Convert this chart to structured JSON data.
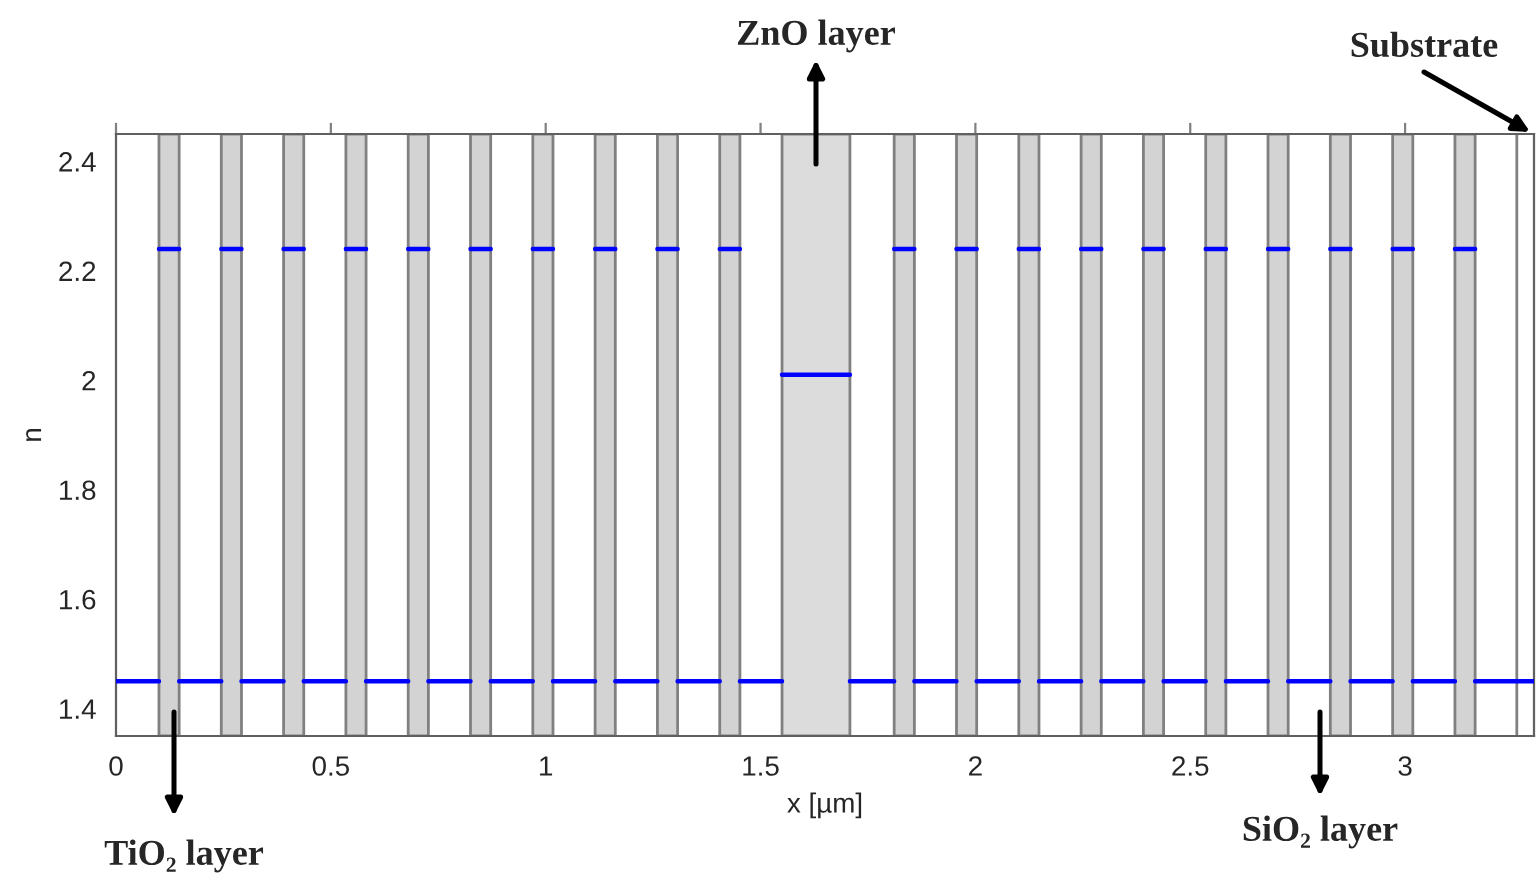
{
  "chart_data": {
    "type": "line",
    "xlabel": "x [µm]",
    "ylabel": "n",
    "xlim": [
      0,
      3.3
    ],
    "ylim": [
      1.35,
      2.45
    ],
    "xticks": [
      0,
      0.5,
      1,
      1.5,
      2,
      2.5,
      3
    ],
    "yticks": [
      1.4,
      1.6,
      1.8,
      2,
      2.2,
      2.4
    ],
    "grid": false,
    "legend": false,
    "marker": "none",
    "line_style": "solid",
    "series": [
      {
        "color": "#0000ff",
        "x": [
          0,
          0.1,
          null,
          0.147,
          0.245,
          null,
          0.292,
          0.39,
          null,
          0.437,
          0.535,
          null,
          0.582,
          0.68,
          null,
          0.727,
          0.825,
          null,
          0.872,
          0.97,
          null,
          1.017,
          1.115,
          null,
          1.162,
          1.26,
          null,
          1.307,
          1.405,
          null,
          1.452,
          1.55,
          null,
          1.708,
          1.811,
          null,
          1.858,
          1.956,
          null,
          2.003,
          2.101,
          null,
          2.148,
          2.246,
          null,
          2.293,
          2.391,
          null,
          2.438,
          2.536,
          null,
          2.583,
          2.681,
          null,
          2.728,
          2.826,
          null,
          2.873,
          2.971,
          null,
          3.018,
          3.116,
          null,
          3.163,
          3.3
        ],
        "values": [
          1.45,
          1.45,
          null,
          1.45,
          1.45,
          null,
          1.45,
          1.45,
          null,
          1.45,
          1.45,
          null,
          1.45,
          1.45,
          null,
          1.45,
          1.45,
          null,
          1.45,
          1.45,
          null,
          1.45,
          1.45,
          null,
          1.45,
          1.45,
          null,
          1.45,
          1.45,
          null,
          1.45,
          1.45,
          null,
          1.45,
          1.45,
          null,
          1.45,
          1.45,
          null,
          1.45,
          1.45,
          null,
          1.45,
          1.45,
          null,
          1.45,
          1.45,
          null,
          1.45,
          1.45,
          null,
          1.45,
          1.45,
          null,
          1.45,
          1.45,
          null,
          1.45,
          1.45,
          null,
          1.45,
          1.45,
          null,
          1.45,
          1.45
        ]
      },
      {
        "color": "#0000ff",
        "x": [
          0.1,
          0.147,
          null,
          0.245,
          0.292,
          null,
          0.39,
          0.437,
          null,
          0.535,
          0.582,
          null,
          0.68,
          0.727,
          null,
          0.825,
          0.872,
          null,
          0.97,
          1.017,
          null,
          1.115,
          1.162,
          null,
          1.26,
          1.307,
          null,
          1.405,
          1.452,
          null,
          1.811,
          1.858,
          null,
          1.956,
          2.003,
          null,
          2.101,
          2.148,
          null,
          2.246,
          2.293,
          null,
          2.391,
          2.438,
          null,
          2.536,
          2.583,
          null,
          2.681,
          2.728,
          null,
          2.826,
          2.873,
          null,
          2.971,
          3.018,
          null,
          3.116,
          3.163
        ],
        "values": [
          2.24,
          2.24,
          null,
          2.24,
          2.24,
          null,
          2.24,
          2.24,
          null,
          2.24,
          2.24,
          null,
          2.24,
          2.24,
          null,
          2.24,
          2.24,
          null,
          2.24,
          2.24,
          null,
          2.24,
          2.24,
          null,
          2.24,
          2.24,
          null,
          2.24,
          2.24,
          null,
          2.24,
          2.24,
          null,
          2.24,
          2.24,
          null,
          2.24,
          2.24,
          null,
          2.24,
          2.24,
          null,
          2.24,
          2.24,
          null,
          2.24,
          2.24,
          null,
          2.24,
          2.24,
          null,
          2.24,
          2.24,
          null,
          2.24,
          2.24,
          null,
          2.24,
          2.24
        ]
      },
      {
        "color": "#0000ff",
        "x": [
          1.55,
          1.708
        ],
        "values": [
          2.01,
          2.01
        ]
      }
    ],
    "bands": [
      {
        "axis": "x",
        "from": 0.1,
        "to": 0.147,
        "color": "#d3d3d3"
      },
      {
        "axis": "x",
        "from": 0.245,
        "to": 0.292,
        "color": "#d3d3d3"
      },
      {
        "axis": "x",
        "from": 0.39,
        "to": 0.437,
        "color": "#d3d3d3"
      },
      {
        "axis": "x",
        "from": 0.535,
        "to": 0.582,
        "color": "#d3d3d3"
      },
      {
        "axis": "x",
        "from": 0.68,
        "to": 0.727,
        "color": "#d3d3d3"
      },
      {
        "axis": "x",
        "from": 0.825,
        "to": 0.872,
        "color": "#d3d3d3"
      },
      {
        "axis": "x",
        "from": 0.97,
        "to": 1.017,
        "color": "#d3d3d3"
      },
      {
        "axis": "x",
        "from": 1.115,
        "to": 1.162,
        "color": "#d3d3d3"
      },
      {
        "axis": "x",
        "from": 1.26,
        "to": 1.307,
        "color": "#d3d3d3"
      },
      {
        "axis": "x",
        "from": 1.405,
        "to": 1.452,
        "color": "#d3d3d3"
      },
      {
        "axis": "x",
        "from": 1.55,
        "to": 1.708,
        "color": "#dcdcdc"
      },
      {
        "axis": "x",
        "from": 1.811,
        "to": 1.858,
        "color": "#d3d3d3"
      },
      {
        "axis": "x",
        "from": 1.956,
        "to": 2.003,
        "color": "#d3d3d3"
      },
      {
        "axis": "x",
        "from": 2.101,
        "to": 2.148,
        "color": "#d3d3d3"
      },
      {
        "axis": "x",
        "from": 2.246,
        "to": 2.293,
        "color": "#d3d3d3"
      },
      {
        "axis": "x",
        "from": 2.391,
        "to": 2.438,
        "color": "#d3d3d3"
      },
      {
        "axis": "x",
        "from": 2.536,
        "to": 2.583,
        "color": "#d3d3d3"
      },
      {
        "axis": "x",
        "from": 2.681,
        "to": 2.728,
        "color": "#d3d3d3"
      },
      {
        "axis": "x",
        "from": 2.826,
        "to": 2.873,
        "color": "#d3d3d3"
      },
      {
        "axis": "x",
        "from": 2.971,
        "to": 3.018,
        "color": "#d3d3d3"
      },
      {
        "axis": "x",
        "from": 3.116,
        "to": 3.163,
        "color": "#d3d3d3"
      }
    ],
    "ref_lines": [
      {
        "axis": "x",
        "value": 3.26,
        "color": "#808080",
        "line_style": "solid"
      }
    ],
    "annotations": [
      "ZnO layer",
      "Substrate",
      "TiO₂ layer",
      "SiO₂ layer"
    ]
  }
}
